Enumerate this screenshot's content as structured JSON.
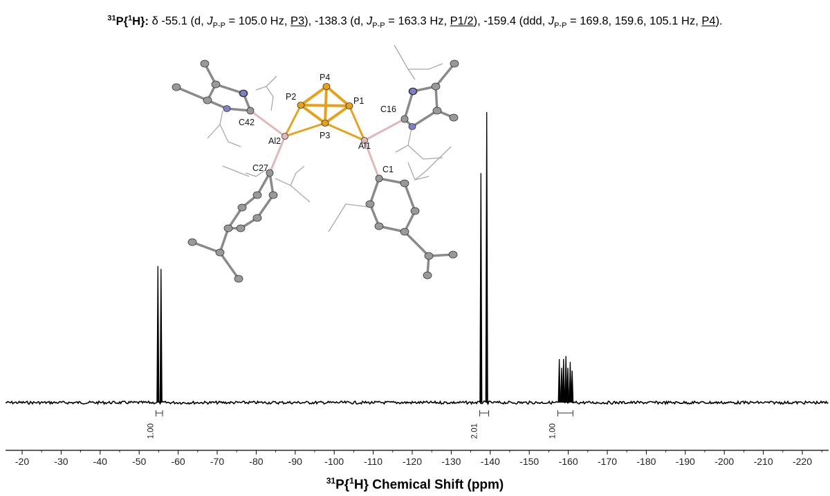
{
  "header": {
    "prefix_bold": "31P{1H}:",
    "prefix_sup1": "31",
    "prefix_main": "P{",
    "prefix_sup2": "1",
    "prefix_end": "H}:",
    "delta": " δ -55.1 (d, ",
    "j": "J",
    "jsub": "P-P",
    "p1": " = 105.0 Hz, ",
    "l1": "P3",
    "p2": "), -138.3 (d, ",
    "p3": " = 163.3 Hz, ",
    "l2": "P1/2",
    "p4": "), -159.4 (ddd, ",
    "p5": " = 169.8, 159.6, 105.1 Hz, ",
    "l3": "P4",
    "p6": ")."
  },
  "xaxis_label": {
    "sup": "31",
    "rest": "P{",
    "sup2": "1",
    "end": "H} Chemical Shift (ppm)"
  },
  "chart_data": {
    "type": "line",
    "title": "31P{1H}: δ -55.1 (d, JP-P = 105.0 Hz, P3), -138.3 (d, JP-P = 163.3 Hz, P1/2), -159.4 (ddd, JP-P = 169.8, 159.6, 105.1 Hz, P4).",
    "xlabel": "31P{1H} Chemical Shift (ppm)",
    "ylabel": "",
    "xlim": [
      -18,
      -225
    ],
    "x_reversed": true,
    "x_ticks": [
      -20,
      -30,
      -40,
      -50,
      -60,
      -70,
      -80,
      -90,
      -100,
      -110,
      -120,
      -130,
      -140,
      -150,
      -160,
      -170,
      -180,
      -190,
      -200,
      -210,
      -220
    ],
    "tick_labels": [
      "-20",
      "-30",
      "-40",
      "-50",
      "-60",
      "-70",
      "-80",
      "-90",
      "-100",
      "-110",
      "-120",
      "-130",
      "-140",
      "-150",
      "-160",
      "-170",
      "-180",
      "-190",
      "-200",
      "-210",
      "-220"
    ],
    "grid": false,
    "peaks": [
      {
        "shift": -54.8,
        "height": 0.47,
        "assignment": "P3"
      },
      {
        "shift": -55.6,
        "height": 0.46,
        "assignment": "P3"
      },
      {
        "shift": -137.6,
        "height": 0.79,
        "assignment": "P1/2"
      },
      {
        "shift": -139.1,
        "height": 1.0,
        "assignment": "P1/2"
      },
      {
        "shift": -157.7,
        "height": 0.15,
        "assignment": "P4"
      },
      {
        "shift": -158.3,
        "height": 0.12,
        "assignment": "P4"
      },
      {
        "shift": -158.8,
        "height": 0.15,
        "assignment": "P4"
      },
      {
        "shift": -159.4,
        "height": 0.16,
        "assignment": "P4"
      },
      {
        "shift": -159.9,
        "height": 0.12,
        "assignment": "P4"
      },
      {
        "shift": -160.5,
        "height": 0.14,
        "assignment": "P4"
      },
      {
        "shift": -161.0,
        "height": 0.11,
        "assignment": "P4"
      }
    ],
    "integrals": [
      {
        "from": -54.3,
        "to": -56.0,
        "value": "1.00"
      },
      {
        "from": -137.3,
        "to": -139.6,
        "value": "2.01"
      },
      {
        "from": -157.3,
        "to": -161.2,
        "value": "1.00"
      }
    ]
  },
  "structure": {
    "atom_labels": [
      "P4",
      "P2",
      "P1",
      "P3",
      "Al2",
      "Al1",
      "C42",
      "C16",
      "C27",
      "C1"
    ],
    "colors": {
      "phosphorus": "#e8a21a",
      "aluminum": "#e0b8b8",
      "nitrogen": "#8080c8",
      "carbon": "#999999",
      "bond": "#8a8a8a",
      "wire": "#a8a8a8"
    }
  }
}
